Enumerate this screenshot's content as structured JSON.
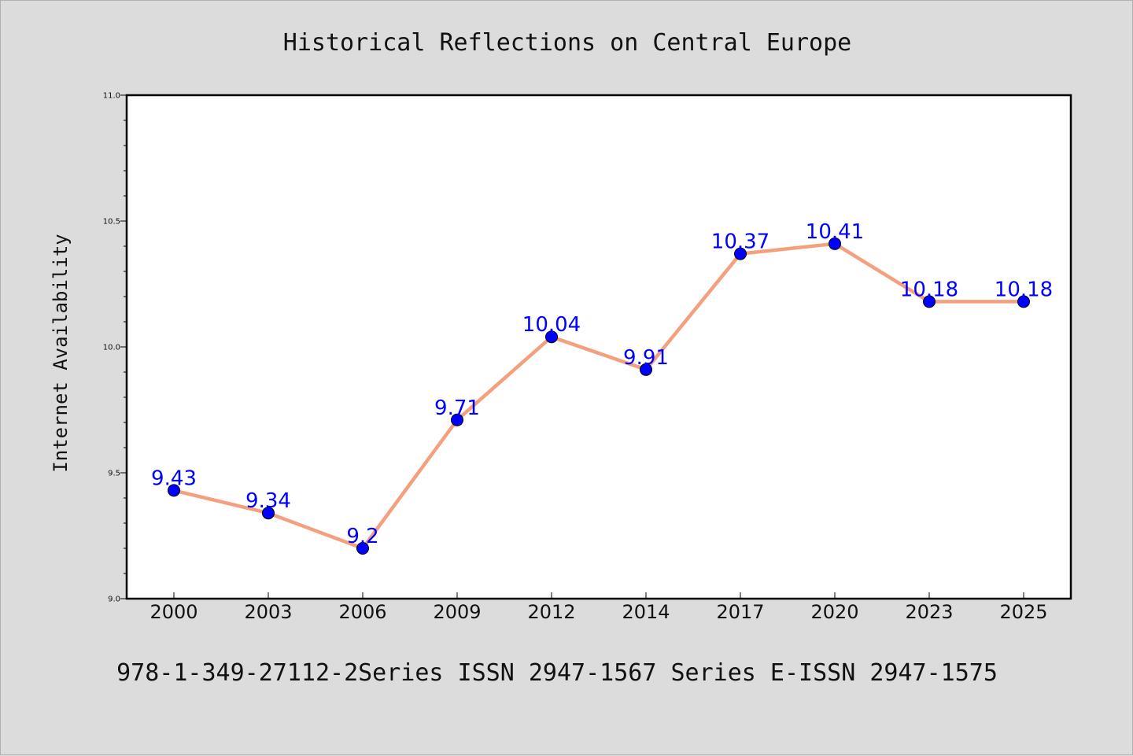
{
  "chart_data": {
    "type": "line",
    "title": "Historical Reflections on Central Europe",
    "xlabel": "",
    "ylabel": "Internet Availability",
    "categories": [
      "2000",
      "2003",
      "2006",
      "2009",
      "2012",
      "2014",
      "2017",
      "2020",
      "2023",
      "2025"
    ],
    "series": [
      {
        "values": [
          9.43,
          9.34,
          9.2,
          9.71,
          10.04,
          9.91,
          10.37,
          10.41,
          10.18,
          10.18
        ]
      }
    ],
    "data_labels": [
      "9.43",
      "9.34",
      "9.2",
      "9.71",
      "10.04",
      "9.91",
      "10.37",
      "10.41",
      "10.18",
      "10.18"
    ],
    "ylim": [
      9.0,
      11.0
    ],
    "yticks": [
      "9.0",
      "9.5",
      "10.0",
      "10.5",
      "11.0"
    ],
    "grid": false,
    "legend": "none",
    "colors": {
      "line": "#f4a07e",
      "marker": "#0000ff",
      "label": "#0000ff",
      "plot_bg": "#ffffff",
      "page_bg": "#dcdcdc"
    }
  },
  "footer": "978-1-349-27112-2Series ISSN 2947-1567 Series E-ISSN 2947-1575"
}
